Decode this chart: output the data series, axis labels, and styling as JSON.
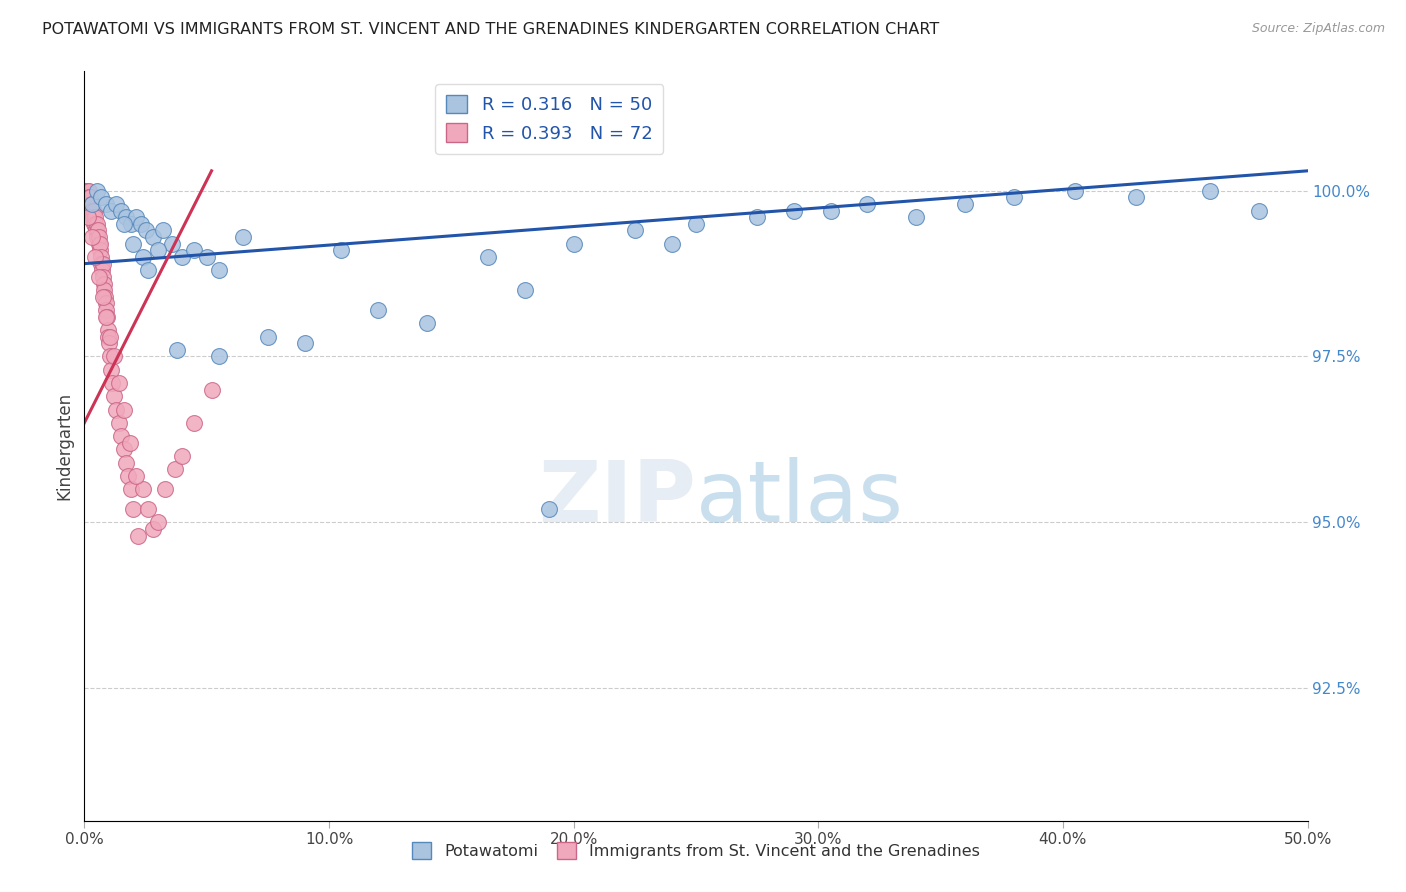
{
  "title": "POTAWATOMI VS IMMIGRANTS FROM ST. VINCENT AND THE GRENADINES KINDERGARTEN CORRELATION CHART",
  "source_text": "Source: ZipAtlas.com",
  "ylabel": "Kindergarten",
  "watermark": "ZIPatlas",
  "xlim": [
    0.0,
    50.0
  ],
  "ylim": [
    90.5,
    101.8
  ],
  "yticks": [
    92.5,
    95.0,
    97.5,
    100.0
  ],
  "ytick_labels": [
    "92.5%",
    "95.0%",
    "97.5%",
    "100.0%"
  ],
  "xticks": [
    0.0,
    10.0,
    20.0,
    30.0,
    40.0,
    50.0
  ],
  "xtick_labels": [
    "0.0%",
    "10.0%",
    "20.0%",
    "30.0%",
    "40.0%",
    "50.0%"
  ],
  "blue_color": "#aac4e0",
  "pink_color": "#f0a8bc",
  "blue_edge_color": "#5588bb",
  "pink_edge_color": "#cc6688",
  "blue_line_color": "#2255aa",
  "pink_line_color": "#cc3355",
  "blue_scatter_x": [
    0.3,
    0.5,
    0.7,
    0.9,
    1.1,
    1.3,
    1.5,
    1.7,
    1.9,
    2.1,
    2.3,
    2.5,
    2.8,
    3.2,
    3.6,
    4.0,
    4.5,
    5.0,
    5.5,
    6.5,
    7.5,
    9.0,
    10.5,
    12.0,
    14.0,
    16.5,
    18.0,
    20.0,
    22.5,
    25.0,
    27.5,
    29.0,
    30.5,
    32.0,
    34.0,
    36.0,
    38.0,
    40.5,
    43.0,
    46.0,
    48.0,
    1.6,
    2.0,
    2.4,
    2.6,
    3.0,
    3.8,
    5.5,
    19.0,
    24.0
  ],
  "blue_scatter_y": [
    99.8,
    100.0,
    99.9,
    99.8,
    99.7,
    99.8,
    99.7,
    99.6,
    99.5,
    99.6,
    99.5,
    99.4,
    99.3,
    99.4,
    99.2,
    99.0,
    99.1,
    99.0,
    98.8,
    99.3,
    97.8,
    97.7,
    99.1,
    98.2,
    98.0,
    99.0,
    98.5,
    99.2,
    99.4,
    99.5,
    99.6,
    99.7,
    99.7,
    99.8,
    99.6,
    99.8,
    99.9,
    100.0,
    99.9,
    100.0,
    99.7,
    99.5,
    99.2,
    99.0,
    98.8,
    99.1,
    97.6,
    97.5,
    95.2,
    99.2
  ],
  "pink_scatter_x": [
    0.05,
    0.1,
    0.12,
    0.15,
    0.18,
    0.2,
    0.22,
    0.25,
    0.28,
    0.3,
    0.32,
    0.35,
    0.38,
    0.4,
    0.42,
    0.45,
    0.48,
    0.5,
    0.52,
    0.55,
    0.58,
    0.6,
    0.62,
    0.65,
    0.68,
    0.7,
    0.72,
    0.75,
    0.78,
    0.8,
    0.82,
    0.85,
    0.88,
    0.9,
    0.92,
    0.95,
    0.98,
    1.0,
    1.05,
    1.1,
    1.15,
    1.2,
    1.3,
    1.4,
    1.5,
    1.6,
    1.7,
    1.8,
    1.9,
    2.0,
    2.2,
    2.4,
    2.6,
    2.8,
    3.0,
    3.3,
    3.7,
    4.0,
    4.5,
    5.2,
    0.15,
    0.3,
    0.45,
    0.6,
    0.75,
    0.9,
    1.05,
    1.2,
    1.4,
    1.6,
    1.85,
    2.1
  ],
  "pink_scatter_y": [
    100.0,
    100.0,
    100.0,
    99.9,
    100.0,
    99.9,
    99.8,
    99.9,
    99.7,
    99.8,
    99.7,
    99.6,
    99.7,
    99.5,
    99.6,
    99.5,
    99.4,
    99.5,
    99.3,
    99.4,
    99.2,
    99.3,
    99.1,
    99.2,
    99.0,
    98.9,
    98.8,
    98.9,
    98.7,
    98.6,
    98.5,
    98.4,
    98.3,
    98.2,
    98.1,
    97.9,
    97.8,
    97.7,
    97.5,
    97.3,
    97.1,
    96.9,
    96.7,
    96.5,
    96.3,
    96.1,
    95.9,
    95.7,
    95.5,
    95.2,
    94.8,
    95.5,
    95.2,
    94.9,
    95.0,
    95.5,
    95.8,
    96.0,
    96.5,
    97.0,
    99.6,
    99.3,
    99.0,
    98.7,
    98.4,
    98.1,
    97.8,
    97.5,
    97.1,
    96.7,
    96.2,
    95.7
  ],
  "blue_line_x0": 0.0,
  "blue_line_x1": 50.0,
  "blue_line_y0": 98.9,
  "blue_line_y1": 100.3,
  "pink_line_x0": 0.0,
  "pink_line_x1": 5.2,
  "pink_line_y0": 96.5,
  "pink_line_y1": 100.3
}
